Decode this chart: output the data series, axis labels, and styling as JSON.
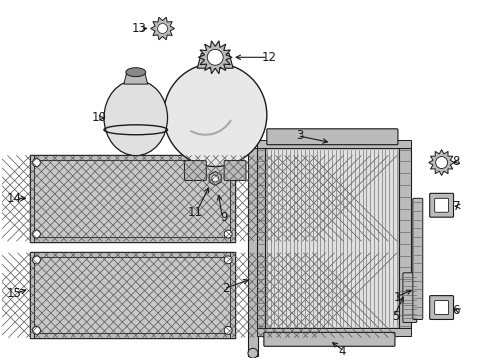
{
  "bg_color": "#ffffff",
  "lc": "#1a1a1a",
  "gray_light": "#d8d8d8",
  "gray_med": "#bbbbbb",
  "gray_dark": "#888888",
  "gray_fill": "#c8c8c8"
}
